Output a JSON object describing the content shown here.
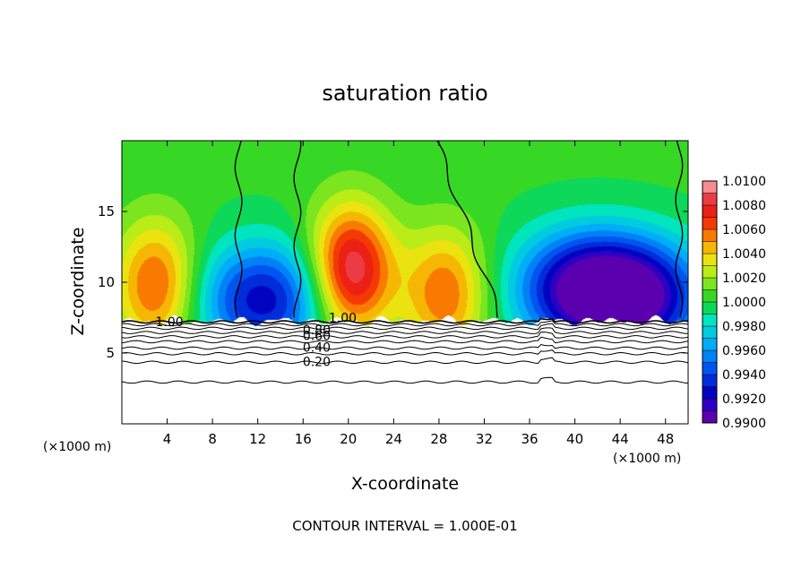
{
  "chart_data": {
    "type": "heatmap",
    "title": "saturation ratio",
    "xlabel": "X-coordinate",
    "ylabel": "Z-coordinate",
    "x_unit": "(×1000 m)",
    "z_unit": "(×1000 m)",
    "footer": "CONTOUR INTERVAL = 1.000E-01",
    "xlim": [
      0,
      50
    ],
    "ylim": [
      0,
      20
    ],
    "x_ticks": [
      "4",
      "8",
      "12",
      "16",
      "20",
      "24",
      "28",
      "32",
      "36",
      "40",
      "44",
      "48"
    ],
    "y_ticks": [
      "5",
      "10",
      "15"
    ],
    "colorbar": {
      "min": 0.99,
      "max": 1.01,
      "labels": [
        "1.0100",
        "1.0080",
        "1.0060",
        "1.0040",
        "1.0020",
        "1.0000",
        "0.9980",
        "0.9960",
        "0.9940",
        "0.9920",
        "0.9900"
      ]
    },
    "contour_labels": [
      "1.00",
      "1.00",
      "0.80",
      "0.60",
      "0.40",
      "0.20"
    ],
    "saturation_base_km": 7.3,
    "subsaturated_contours_km": [
      {
        "level": 1.0,
        "z": 7.2
      },
      {
        "level": 0.9,
        "z": 7.0
      },
      {
        "level": 0.8,
        "z": 6.75
      },
      {
        "level": 0.7,
        "z": 6.45
      },
      {
        "level": 0.6,
        "z": 6.15
      },
      {
        "level": 0.5,
        "z": 5.8
      },
      {
        "level": 0.4,
        "z": 5.35
      },
      {
        "level": 0.3,
        "z": 4.95
      },
      {
        "level": 0.2,
        "z": 4.35
      },
      {
        "level": 0.1,
        "z": 2.95
      }
    ],
    "features": [
      {
        "kind": "maximum",
        "x": 3.0,
        "z": 9.8,
        "value": 1.0065
      },
      {
        "kind": "minimum",
        "x": 12.5,
        "z": 8.8,
        "value": 0.9925
      },
      {
        "kind": "maximum",
        "x": 20.2,
        "z": 10.8,
        "value": 1.0095
      },
      {
        "kind": "maximum",
        "x": 28.5,
        "z": 9.2,
        "value": 1.006
      },
      {
        "kind": "minimum",
        "x": 40.5,
        "z": 9.6,
        "value": 0.992
      },
      {
        "kind": "minimum",
        "x": 45.5,
        "z": 9.0,
        "value": 0.9915
      }
    ],
    "unity_contours_x_km": [
      10.3,
      15.5,
      30.0,
      49.2
    ]
  }
}
